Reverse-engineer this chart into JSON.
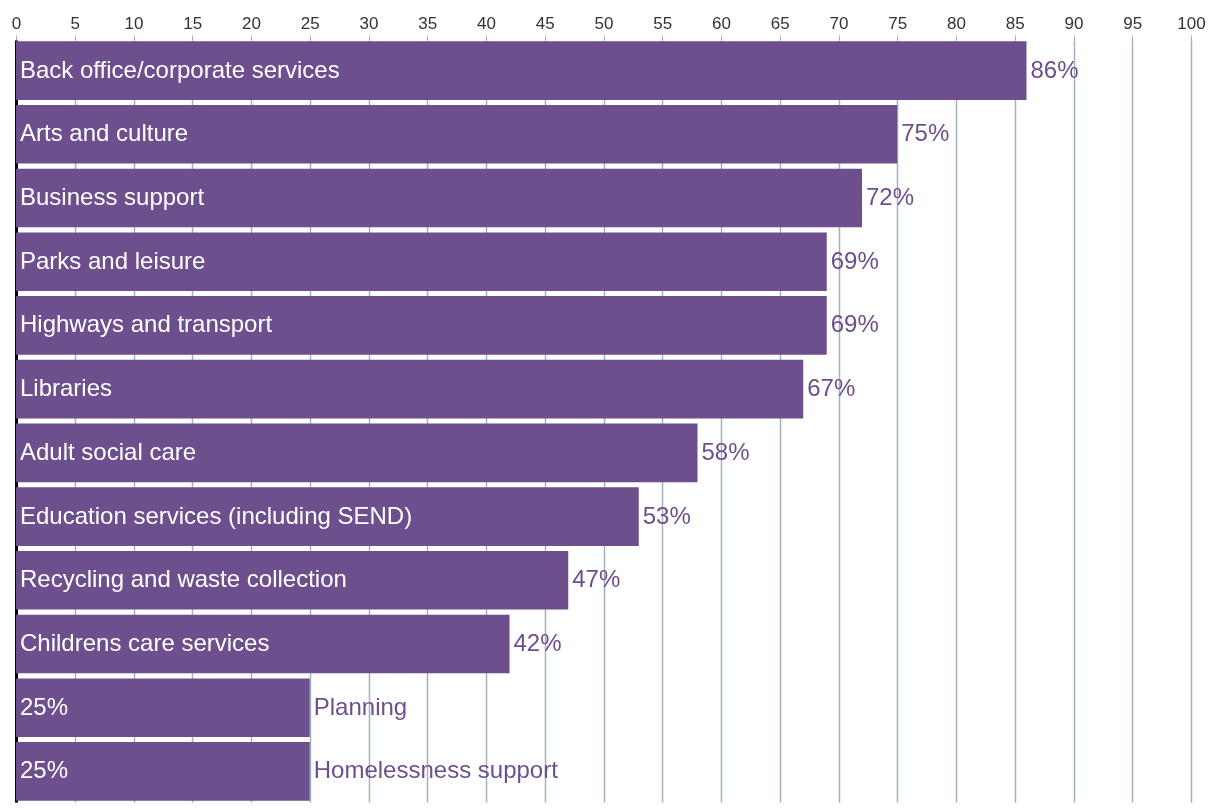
{
  "chart_data": {
    "type": "bar",
    "orientation": "horizontal",
    "categories": [
      "Back office/corporate services",
      "Arts and culture",
      "Business support",
      "Parks and leisure",
      "Highways and transport",
      "Libraries",
      "Adult social care",
      "Education services (including SEND)",
      "Recycling and waste collection",
      "Childrens care services",
      "Planning",
      "Homelessness support"
    ],
    "values": [
      86,
      75,
      72,
      69,
      69,
      67,
      58,
      53,
      47,
      42,
      25,
      25
    ],
    "value_labels": [
      "86%",
      "75%",
      "72%",
      "69%",
      "69%",
      "67%",
      "58%",
      "53%",
      "47%",
      "42%",
      "25%",
      "25%"
    ],
    "color": "#6e4f8e",
    "xlim": [
      0,
      100
    ],
    "xticks": [
      0,
      5,
      10,
      15,
      20,
      25,
      30,
      35,
      40,
      45,
      50,
      55,
      60,
      65,
      70,
      75,
      80,
      85,
      90,
      95,
      100
    ],
    "grid": "x"
  }
}
